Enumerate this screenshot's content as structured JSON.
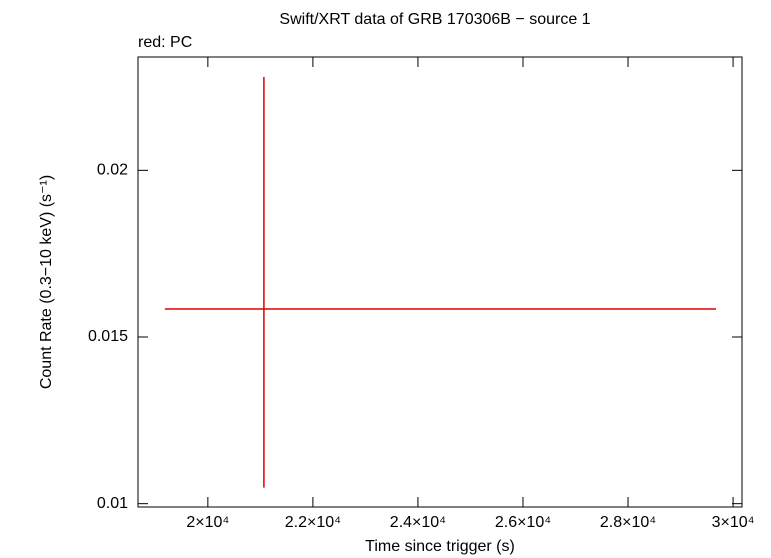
{
  "chart_data": {
    "type": "errorbar",
    "title": "Swift/XRT data of GRB 170306B − source 1",
    "subtitle": "red: PC",
    "x_label": "Time since trigger (s)",
    "y_label": "Count Rate (0.3−10 keV) (s⁻¹)",
    "xlim": [
      18670,
      30170
    ],
    "ylim": [
      0.0099,
      0.0234
    ],
    "xticks": [
      {
        "value": 20000,
        "label": "2×10⁴"
      },
      {
        "value": 22000,
        "label": "2.2×10⁴"
      },
      {
        "value": 24000,
        "label": "2.4×10⁴"
      },
      {
        "value": 26000,
        "label": "2.6×10⁴"
      },
      {
        "value": 28000,
        "label": "2.8×10⁴"
      },
      {
        "value": 30000,
        "label": "3×10⁴"
      }
    ],
    "yticks": [
      0.01,
      0.015,
      0.02
    ],
    "series": [
      {
        "name": "PC",
        "color": "#e00000",
        "x": [
          21067
        ],
        "xerr_minus": [
          1886
        ],
        "xerr_plus": [
          8609
        ],
        "values": [
          0.01584
        ],
        "yerr_minus": [
          0.00536
        ],
        "yerr_plus": [
          0.00696
        ]
      }
    ]
  }
}
